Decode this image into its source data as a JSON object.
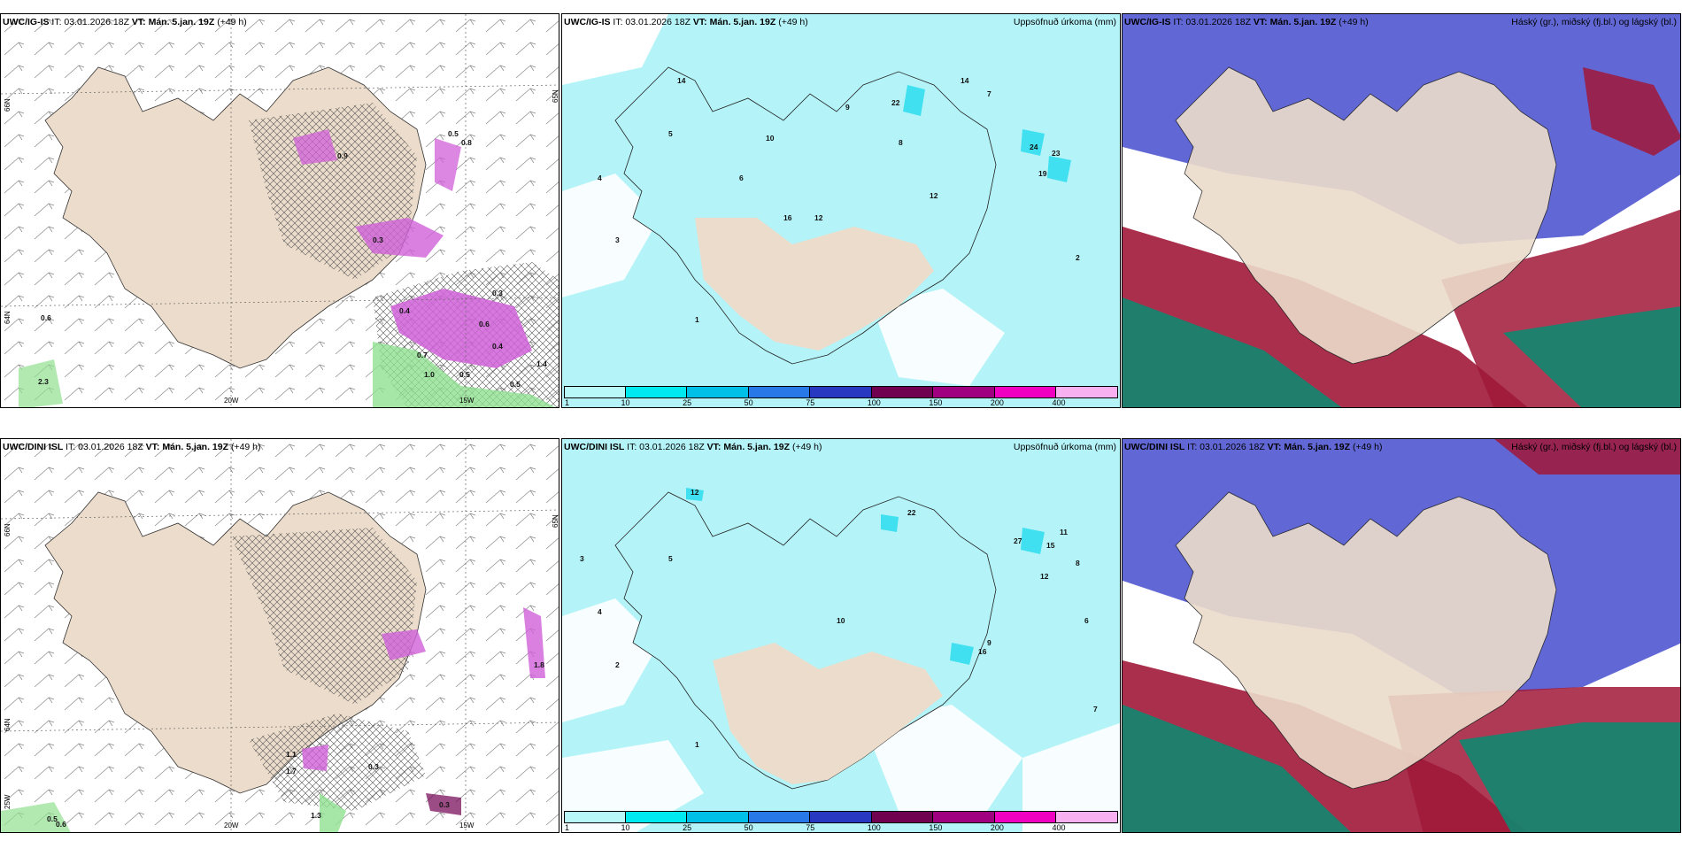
{
  "rows": [
    {
      "model_label": "UWC/IG-IS",
      "init_label": "IT: 03.01.2026 18Z",
      "valid_label": "VT: Mán. 5.jan. 19Z",
      "lead_label": "(+49 h)"
    },
    {
      "model_label": "UWC/DINI ISL",
      "init_label": "IT: 03.01.2026 18Z",
      "valid_label": "VT: Mán. 5.jan. 19Z",
      "lead_label": "(+49 h)"
    }
  ],
  "precip_title": "Uppsöfnuð úrkoma (mm)",
  "cloud_title": "Háský (gr.), miðský (fj.bl.) og lágský (bl.)",
  "axis_labels": {
    "lat_66": "66N",
    "lat_64": "64N",
    "lat_65": "65N",
    "lon_20w": "20W",
    "lon_15w": "15W",
    "lon_25w": "25W"
  },
  "colorbar": {
    "ticks": [
      "1",
      "10",
      "25",
      "50",
      "75",
      "100",
      "150",
      "200",
      "400"
    ],
    "colors": [
      "#b8f8f8",
      "#00e8f0",
      "#00c0e8",
      "#2878e8",
      "#2838c0",
      "#700050",
      "#a00080",
      "#f000c0",
      "#f8b0f0"
    ]
  },
  "colors": {
    "land": "#ecdccb",
    "ocean_precip": "#b4f4f8",
    "precip_mid": "#40e0f0",
    "pink": "#d060d8",
    "green": "#90e090",
    "high_cloud": "#5058d0",
    "mid_cloud": "#a01838",
    "low_cloud": "#108870"
  },
  "panel_a_values_top": [
    "0.6",
    "0.5",
    "0.9",
    "0.7",
    "1.0",
    "0.5",
    "0.3",
    "0.6",
    "0.4",
    "1.4",
    "2.3",
    "0.5",
    "0.8",
    "0.3",
    "0.4"
  ],
  "panel_a_values_bottom": [
    "1.1",
    "1.7",
    "1.3",
    "0.3",
    "0.5",
    "0.6",
    "1.8",
    "0.3"
  ],
  "panel_b_values_top": [
    "22",
    "14",
    "24",
    "23",
    "19",
    "12",
    "12",
    "14",
    "10",
    "16",
    "9",
    "8",
    "7",
    "5",
    "6",
    "4",
    "3",
    "2",
    "1"
  ],
  "panel_b_values_bottom": [
    "12",
    "22",
    "27",
    "15",
    "16",
    "10",
    "11",
    "12",
    "9",
    "8",
    "7",
    "6",
    "5",
    "4",
    "3",
    "2",
    "1"
  ]
}
